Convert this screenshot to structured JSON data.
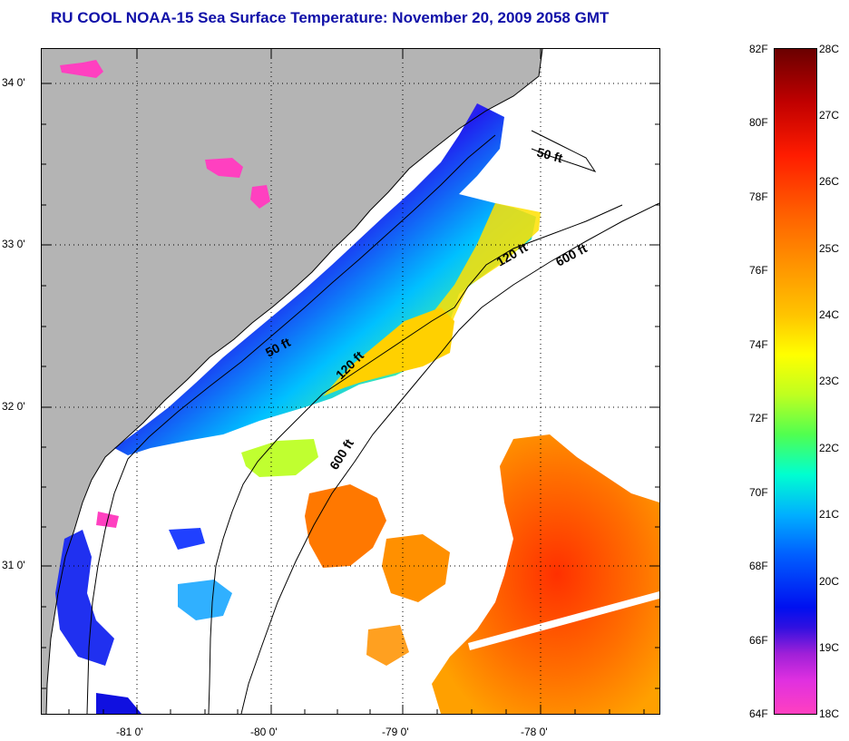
{
  "title": "RU COOL  NOAA-15  Sea Surface Temperature:  November 20, 2009 2058 GMT",
  "map": {
    "lat_labels": [
      "34 0'",
      "33 0'",
      "32 0'",
      "31 0'"
    ],
    "lon_labels": [
      "-81 0'",
      "-80 0'",
      "-79 0'",
      "-78 0'"
    ],
    "contour_labels": {
      "c50a": "50 ft",
      "c50b": "50 ft",
      "c120a": "120 ft",
      "c120b": "120 ft",
      "c600a": "600 ft",
      "c600b": "600 ft"
    },
    "colors": {
      "land": "#b4b4b4",
      "cloud": "#ffffff",
      "coast": "#000000"
    }
  },
  "colorbar": {
    "fahrenheit_labels": [
      "82F",
      "80F",
      "78F",
      "76F",
      "74F",
      "72F",
      "70F",
      "68F",
      "66F",
      "64F"
    ],
    "celsius_labels": [
      "28C",
      "27C",
      "26C",
      "25C",
      "24C",
      "23C",
      "22C",
      "21C",
      "20C",
      "19C",
      "18C"
    ],
    "range_f": [
      64,
      82
    ],
    "range_c": [
      18,
      28
    ]
  }
}
